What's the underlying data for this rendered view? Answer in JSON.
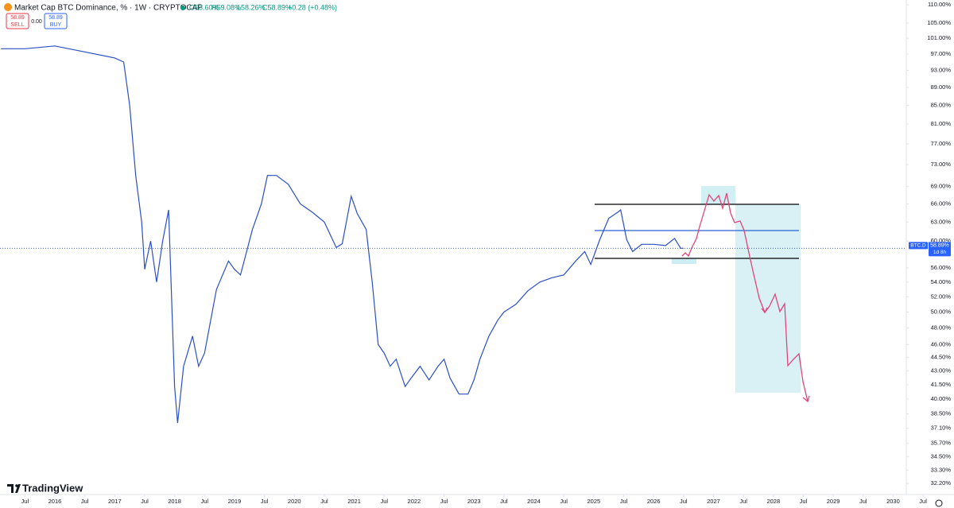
{
  "header": {
    "symbol": "Market Cap BTC Dominance, % · 1W · CRYPTOCAP",
    "open": "O58.60%",
    "high": "H59.08%",
    "low": "L58.26%",
    "close": "C58.89%",
    "change": "+0.28 (+0.48%)",
    "sell_price": "58.89",
    "sell": "SELL",
    "spread": "0.00",
    "buy_price": "58.89",
    "buy": "BUY"
  },
  "price_tag": {
    "symbol": "BTC.D",
    "label": "58.89%",
    "countdown": "1d 8h"
  },
  "brand": "TradingView",
  "chart_data": {
    "type": "line",
    "log_scale": true,
    "grid": false,
    "series": [
      {
        "color": "#2a4fc4",
        "x": [
          2015.1,
          2015.5,
          2016.0,
          2016.5,
          2017.0,
          2017.15,
          2017.25,
          2017.35,
          2017.45,
          2017.5,
          2017.6,
          2017.7,
          2017.8,
          2017.9,
          2018.0,
          2018.05,
          2018.15,
          2018.3,
          2018.4,
          2018.5,
          2018.7,
          2018.9,
          2019.0,
          2019.1,
          2019.3,
          2019.45,
          2019.55,
          2019.7,
          2019.9,
          2020.1,
          2020.3,
          2020.5,
          2020.7,
          2020.8,
          2020.95,
          2021.05,
          2021.2,
          2021.3,
          2021.4,
          2021.5,
          2021.6,
          2021.7,
          2021.85,
          2021.95,
          2022.1,
          2022.25,
          2022.4,
          2022.5,
          2022.6,
          2022.75,
          2022.9,
          2023.0,
          2023.1,
          2023.25,
          2023.4,
          2023.5,
          2023.7,
          2023.9,
          2024.1,
          2024.3,
          2024.5,
          2024.7,
          2024.85,
          2024.95,
          2025.1,
          2025.25,
          2025.4,
          2025.45,
          2025.55,
          2025.65,
          2025.8,
          2026.0,
          2026.2,
          2026.35,
          2026.45,
          2026.5
        ],
        "values": [
          98.3,
          98.3,
          99,
          97.5,
          96,
          95,
          85,
          71,
          63,
          55.8,
          60,
          54,
          60,
          65,
          41.3,
          37.6,
          43.5,
          47,
          43.5,
          45,
          53,
          57,
          55.8,
          55,
          61.8,
          66,
          71,
          71,
          69.4,
          66,
          64.6,
          63,
          59,
          59.6,
          67.3,
          64.4,
          61.8,
          54,
          46,
          45,
          43.5,
          44.3,
          41.3,
          42.2,
          43.5,
          42,
          43.5,
          44.3,
          42.2,
          40.5,
          40.5,
          42,
          44.3,
          47,
          49,
          50,
          51,
          52.8,
          54,
          54.6,
          55,
          57,
          58.4,
          56.5,
          60.2,
          63.6,
          64.6,
          65,
          60.2,
          58.4,
          59.5,
          59.5,
          59.3,
          60.4,
          58.9,
          58.89
        ]
      }
    ],
    "xlim": [
      2015.084,
      2030.22
    ],
    "xticks": [
      {
        "value": 2015.5,
        "label": "Jul"
      },
      2016,
      {
        "value": 2016.5,
        "label": "Jul"
      },
      2017,
      {
        "value": 2017.5,
        "label": "Jul"
      },
      2018,
      {
        "value": 2018.5,
        "label": "Jul"
      },
      2019,
      {
        "value": 2019.5,
        "label": "Jul"
      },
      2020,
      {
        "value": 2020.5,
        "label": "Jul"
      },
      2021,
      {
        "value": 2021.5,
        "label": "Jul"
      },
      2022,
      {
        "value": 2022.5,
        "label": "Jul"
      },
      2023,
      {
        "value": 2023.5,
        "label": "Jul"
      },
      2024,
      {
        "value": 2024.5,
        "label": "Jul"
      },
      2025,
      {
        "value": 2025.5,
        "label": "Jul"
      },
      2026,
      {
        "value": 2026.5,
        "label": "Jul"
      },
      2027,
      {
        "value": 2027.5,
        "label": "Jul"
      },
      2028,
      {
        "value": 2028.5,
        "label": "Jul"
      },
      2029,
      {
        "value": 2029.5,
        "label": "Jul"
      },
      2030,
      {
        "value": 2030.5,
        "label": "Jul"
      }
    ],
    "ylim": [
      31.3,
      111.4
    ],
    "yticks": [
      {
        "value": 110,
        "label": "110.00%"
      },
      {
        "value": 105,
        "label": "105.00%"
      },
      {
        "value": 101,
        "label": "101.00%"
      },
      {
        "value": 97,
        "label": "97.00%"
      },
      {
        "value": 93,
        "label": "93.00%"
      },
      {
        "value": 89,
        "label": "89.00%"
      },
      {
        "value": 85,
        "label": "85.00%"
      },
      {
        "value": 81,
        "label": "81.00%"
      },
      {
        "value": 77,
        "label": "77.00%"
      },
      {
        "value": 73,
        "label": "73.00%"
      },
      {
        "value": 69,
        "label": "69.00%"
      },
      {
        "value": 66,
        "label": "66.00%"
      },
      {
        "value": 63,
        "label": "63.00%"
      },
      {
        "value": 60,
        "label": "60.00%"
      },
      {
        "value": 56,
        "label": "56.00%"
      },
      {
        "value": 54,
        "label": "54.00%"
      },
      {
        "value": 52,
        "label": "52.00%"
      },
      {
        "value": 50,
        "label": "50.00%"
      },
      {
        "value": 48,
        "label": "48.00%"
      },
      {
        "value": 46,
        "label": "46.00%"
      },
      {
        "value": 44.5,
        "label": "44.50%"
      },
      {
        "value": 43,
        "label": "43.00%"
      },
      {
        "value": 41.5,
        "label": "41.50%"
      },
      {
        "value": 40,
        "label": "40.00%"
      },
      {
        "value": 38.5,
        "label": "38.50%"
      },
      {
        "value": 37.1,
        "label": "37.10%"
      },
      {
        "value": 35.7,
        "label": "35.70%"
      },
      {
        "value": 34.5,
        "label": "34.50%"
      },
      {
        "value": 33.3,
        "label": "33.30%"
      },
      {
        "value": 32.2,
        "label": "32.20%"
      }
    ]
  }
}
